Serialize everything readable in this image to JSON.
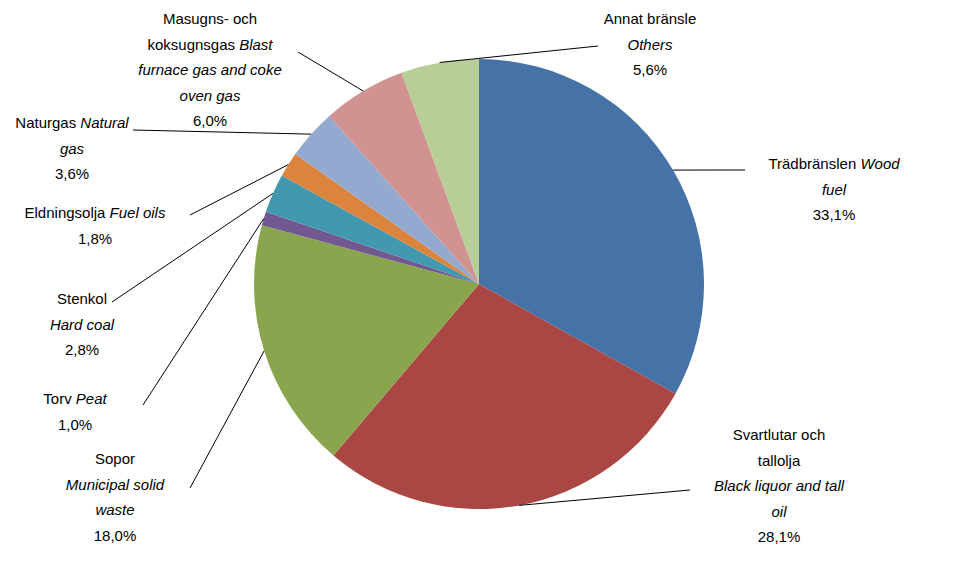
{
  "chart_data": {
    "type": "pie",
    "categories": [
      "Trädbränslen",
      "Svartlutar och tallolja",
      "Sopor",
      "Torv",
      "Stenkol",
      "Eldningsolja",
      "Naturgas",
      "Masugns- och koksugnsgas",
      "Annat bränsle"
    ],
    "categories_en": [
      "Wood fuel",
      "Black liquor and tall oil",
      "Municipal solid waste",
      "Peat",
      "Hard coal",
      "Fuel oils",
      "Natural gas",
      "Blast furnace gas and coke oven gas",
      "Others"
    ],
    "values": [
      33.1,
      28.1,
      18.0,
      1.0,
      2.8,
      1.8,
      3.6,
      6.0,
      5.6
    ],
    "value_labels": [
      "33,1%",
      "28,1%",
      "18,0%",
      "1,0%",
      "2,8%",
      "1,8%",
      "3,6%",
      "6,0%",
      "5,6%"
    ],
    "colors": [
      "#4572a7",
      "#aa4643",
      "#89a54e",
      "#71588f",
      "#4198af",
      "#db843d",
      "#93a9cf",
      "#d19392",
      "#b9cd96"
    ],
    "data_labels": true
  }
}
